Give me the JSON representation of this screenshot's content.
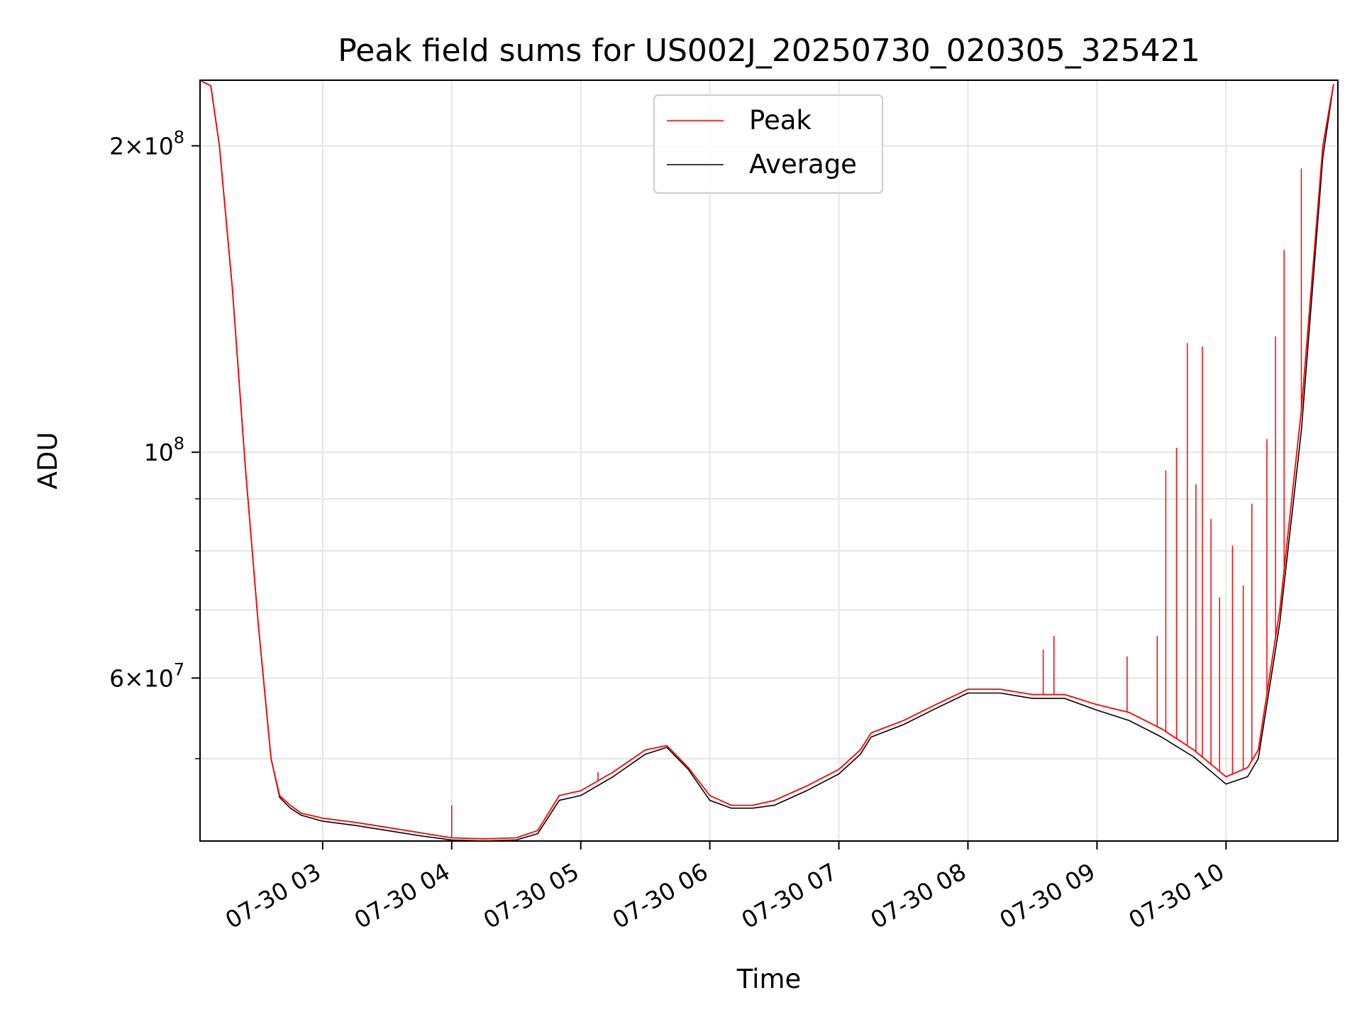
{
  "chart_data": {
    "type": "line",
    "title": "Peak field sums for US002J_20250730_020305_325421",
    "xlabel": "Time",
    "ylabel": "ADU",
    "yscale": "log",
    "grid": true,
    "legend_placement": "top-center",
    "xlim": [
      "2025-07-30 02:03",
      "2025-07-30 10:52"
    ],
    "ylim": [
      41500000,
      232000000
    ],
    "x_ticks": [
      {
        "value": "2025-07-30 03:00",
        "label": "07-30 03"
      },
      {
        "value": "2025-07-30 04:00",
        "label": "07-30 04"
      },
      {
        "value": "2025-07-30 05:00",
        "label": "07-30 05"
      },
      {
        "value": "2025-07-30 06:00",
        "label": "07-30 06"
      },
      {
        "value": "2025-07-30 07:00",
        "label": "07-30 07"
      },
      {
        "value": "2025-07-30 08:00",
        "label": "07-30 08"
      },
      {
        "value": "2025-07-30 09:00",
        "label": "07-30 09"
      },
      {
        "value": "2025-07-30 10:00",
        "label": "07-30 10"
      }
    ],
    "y_ticks_major": [
      {
        "value": 60000000,
        "base": "6",
        "exp": "7"
      },
      {
        "value": 100000000,
        "base": "",
        "exp": "8"
      },
      {
        "value": 200000000,
        "base": "2",
        "exp": "8"
      }
    ],
    "y_ticks_minor": [
      50000000,
      70000000,
      80000000,
      90000000
    ],
    "series": [
      {
        "name": "Peak",
        "color": "#ff0000",
        "x": [
          "2025-07-30 02:03",
          "2025-07-30 02:08",
          "2025-07-30 02:12",
          "2025-07-30 02:18",
          "2025-07-30 02:24",
          "2025-07-30 02:30",
          "2025-07-30 02:36",
          "2025-07-30 02:40",
          "2025-07-30 02:45",
          "2025-07-30 02:50",
          "2025-07-30 03:00",
          "2025-07-30 03:15",
          "2025-07-30 03:30",
          "2025-07-30 03:45",
          "2025-07-30 04:00",
          "2025-07-30 04:15",
          "2025-07-30 04:30",
          "2025-07-30 04:40",
          "2025-07-30 04:50",
          "2025-07-30 05:00",
          "2025-07-30 05:15",
          "2025-07-30 05:30",
          "2025-07-30 05:40",
          "2025-07-30 05:50",
          "2025-07-30 06:00",
          "2025-07-30 06:10",
          "2025-07-30 06:20",
          "2025-07-30 06:30",
          "2025-07-30 06:45",
          "2025-07-30 07:00",
          "2025-07-30 07:10",
          "2025-07-30 07:15",
          "2025-07-30 07:30",
          "2025-07-30 07:45",
          "2025-07-30 08:00",
          "2025-07-30 08:15",
          "2025-07-30 08:30",
          "2025-07-30 08:45",
          "2025-07-30 09:00",
          "2025-07-30 09:15",
          "2025-07-30 09:30",
          "2025-07-30 09:45",
          "2025-07-30 10:00",
          "2025-07-30 10:10",
          "2025-07-30 10:15",
          "2025-07-30 10:25",
          "2025-07-30 10:35",
          "2025-07-30 10:45",
          "2025-07-30 10:50"
        ],
        "y": [
          232000000,
          229000000,
          200000000,
          145000000,
          97000000,
          68000000,
          50000000,
          46000000,
          45000000,
          44200000,
          43700000,
          43300000,
          42800000,
          42300000,
          41800000,
          41700000,
          41800000,
          42500000,
          46000000,
          46500000,
          48500000,
          51000000,
          51500000,
          49000000,
          46000000,
          45000000,
          45000000,
          45500000,
          47000000,
          48800000,
          51000000,
          53000000,
          54500000,
          56500000,
          58500000,
          58500000,
          57800000,
          57800000,
          56500000,
          55500000,
          53500000,
          51000000,
          48000000,
          49000000,
          51000000,
          70000000,
          110000000,
          200000000,
          230000000
        ],
        "spikes": [
          {
            "x": "2025-07-30 09:28",
            "y": 66000000
          },
          {
            "x": "2025-07-30 09:32",
            "y": 96000000
          },
          {
            "x": "2025-07-30 09:37",
            "y": 101000000
          },
          {
            "x": "2025-07-30 09:42",
            "y": 128000000
          },
          {
            "x": "2025-07-30 09:46",
            "y": 93000000
          },
          {
            "x": "2025-07-30 09:49",
            "y": 127000000
          },
          {
            "x": "2025-07-30 09:53",
            "y": 86000000
          },
          {
            "x": "2025-07-30 09:57",
            "y": 72000000
          },
          {
            "x": "2025-07-30 10:03",
            "y": 81000000
          },
          {
            "x": "2025-07-30 10:08",
            "y": 74000000
          },
          {
            "x": "2025-07-30 10:12",
            "y": 89000000
          },
          {
            "x": "2025-07-30 10:19",
            "y": 103000000
          },
          {
            "x": "2025-07-30 10:23",
            "y": 130000000
          },
          {
            "x": "2025-07-30 10:27",
            "y": 158000000
          },
          {
            "x": "2025-07-30 10:35",
            "y": 190000000
          },
          {
            "x": "2025-07-30 08:35",
            "y": 64000000
          },
          {
            "x": "2025-07-30 08:40",
            "y": 66000000
          },
          {
            "x": "2025-07-30 09:14",
            "y": 63000000
          },
          {
            "x": "2025-07-30 04:00",
            "y": 45000000
          },
          {
            "x": "2025-07-30 05:08",
            "y": 48500000
          }
        ]
      },
      {
        "name": "Average",
        "color": "#000000",
        "x": [
          "2025-07-30 02:03",
          "2025-07-30 02:08",
          "2025-07-30 02:12",
          "2025-07-30 02:18",
          "2025-07-30 02:24",
          "2025-07-30 02:30",
          "2025-07-30 02:36",
          "2025-07-30 02:40",
          "2025-07-30 02:45",
          "2025-07-30 02:50",
          "2025-07-30 03:00",
          "2025-07-30 03:15",
          "2025-07-30 03:30",
          "2025-07-30 03:45",
          "2025-07-30 04:00",
          "2025-07-30 04:15",
          "2025-07-30 04:30",
          "2025-07-30 04:40",
          "2025-07-30 04:50",
          "2025-07-30 05:00",
          "2025-07-30 05:15",
          "2025-07-30 05:30",
          "2025-07-30 05:40",
          "2025-07-30 05:50",
          "2025-07-30 06:00",
          "2025-07-30 06:10",
          "2025-07-30 06:20",
          "2025-07-30 06:30",
          "2025-07-30 06:45",
          "2025-07-30 07:00",
          "2025-07-30 07:10",
          "2025-07-30 07:15",
          "2025-07-30 07:30",
          "2025-07-30 07:45",
          "2025-07-30 08:00",
          "2025-07-30 08:15",
          "2025-07-30 08:30",
          "2025-07-30 08:45",
          "2025-07-30 09:00",
          "2025-07-30 09:15",
          "2025-07-30 09:30",
          "2025-07-30 09:45",
          "2025-07-30 10:00",
          "2025-07-30 10:10",
          "2025-07-30 10:15",
          "2025-07-30 10:25",
          "2025-07-30 10:35",
          "2025-07-30 10:45",
          "2025-07-30 10:50"
        ],
        "y": [
          232000000,
          229000000,
          200000000,
          145000000,
          97000000,
          68000000,
          50000000,
          45800000,
          44700000,
          44000000,
          43400000,
          43000000,
          42500000,
          42000000,
          41600000,
          41500000,
          41600000,
          42200000,
          45500000,
          46000000,
          48000000,
          50500000,
          51300000,
          48800000,
          45500000,
          44700000,
          44700000,
          45000000,
          46500000,
          48300000,
          50500000,
          52500000,
          54000000,
          56000000,
          58000000,
          58000000,
          57300000,
          57300000,
          55800000,
          54500000,
          52500000,
          50200000,
          47200000,
          48000000,
          50000000,
          68000000,
          105000000,
          195000000,
          230000000
        ]
      }
    ]
  }
}
